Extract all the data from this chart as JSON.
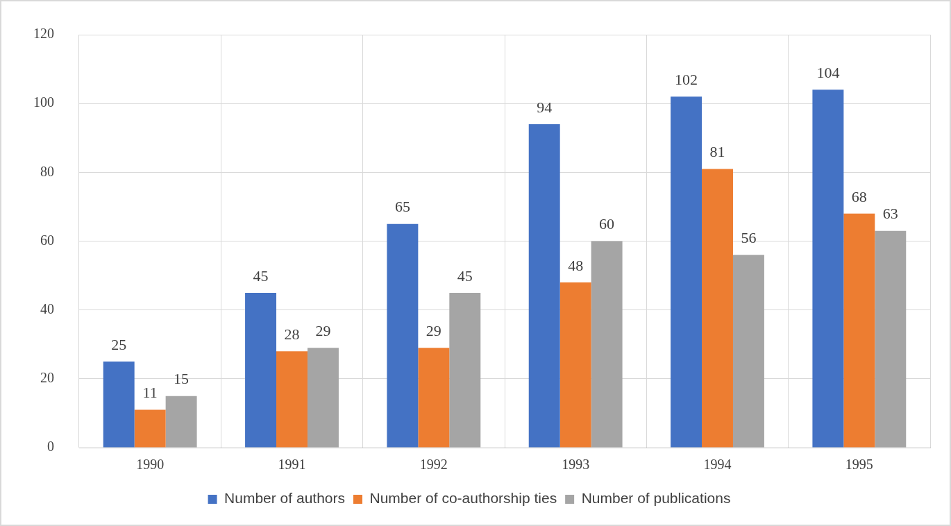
{
  "chart_data": {
    "type": "bar",
    "categories": [
      "1990",
      "1991",
      "1992",
      "1993",
      "1994",
      "1995"
    ],
    "series": [
      {
        "name": "Number of authors",
        "color": "#4472c4",
        "values": [
          25,
          45,
          65,
          94,
          102,
          104
        ]
      },
      {
        "name": "Number of co-authorship ties",
        "color": "#ed7d31",
        "values": [
          11,
          28,
          29,
          48,
          81,
          68
        ]
      },
      {
        "name": "Number of publications",
        "color": "#a5a5a5",
        "values": [
          15,
          29,
          45,
          60,
          56,
          63
        ]
      }
    ],
    "ylim": [
      0,
      120
    ],
    "yticks": [
      0,
      20,
      40,
      60,
      80,
      100,
      120
    ],
    "grid": true,
    "legend": "bottom",
    "data_labels": true
  }
}
